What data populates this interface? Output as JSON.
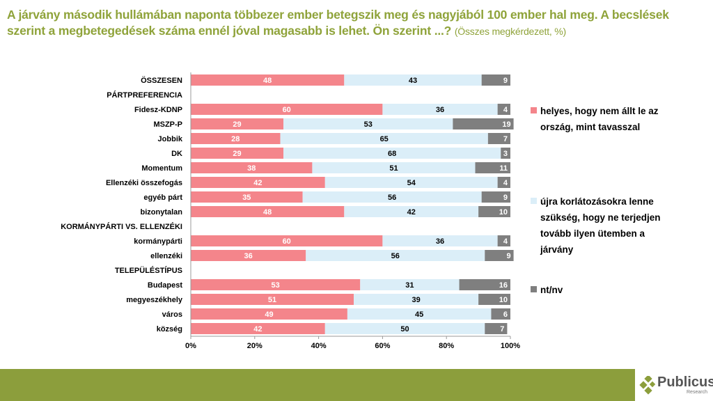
{
  "title": {
    "main": "A járvány második hullámában naponta többezer ember betegszik meg és nagyjából 100 ember hal meg. A becslések szerint a megbetegedések száma ennél jóval magasabb is lehet. Ön szerint ...?",
    "sub": "(Összes megkérdezett, %)"
  },
  "colors": {
    "s1": "#f4858b",
    "s2": "#dbeef8",
    "s3": "#7f7f7f",
    "title": "#8fa33a"
  },
  "chart_data": {
    "type": "bar",
    "stacked": true,
    "orientation": "horizontal",
    "xlim": [
      0,
      100
    ],
    "xticks": [
      "0%",
      "20%",
      "40%",
      "60%",
      "80%",
      "100%"
    ],
    "categories": [
      "ÖSSZESEN",
      "PÁRTPREFERENCIA",
      "Fidesz-KDNP",
      "MSZP-P",
      "Jobbik",
      "DK",
      "Momentum",
      "Ellenzéki összefogás",
      "egyéb párt",
      "bizonytalan",
      "KORMÁNYPÁRTI VS. ELLENZÉKI",
      "kormánypárti",
      "ellenzéki",
      "TELEPÜLÉSTÍPUS",
      "Budapest",
      "megyeszékhely",
      "város",
      "község"
    ],
    "series": [
      {
        "name": "helyes, hogy nem állt le az ország, mint tavasszal",
        "values": [
          48,
          null,
          60,
          29,
          28,
          29,
          38,
          42,
          35,
          48,
          null,
          60,
          36,
          null,
          53,
          51,
          49,
          42
        ]
      },
      {
        "name": "újra korlátozásokra lenne szükség, hogy ne terjedjen tovább ilyen ütemben a járvány",
        "values": [
          43,
          null,
          36,
          53,
          65,
          68,
          51,
          54,
          56,
          42,
          null,
          36,
          56,
          null,
          31,
          39,
          45,
          50
        ]
      },
      {
        "name": "nt/nv",
        "values": [
          9,
          null,
          4,
          19,
          7,
          3,
          11,
          4,
          9,
          10,
          null,
          4,
          9,
          null,
          16,
          10,
          6,
          7
        ]
      }
    ],
    "legend": "right"
  },
  "logo": {
    "name": "Publicus",
    "sub": "Research"
  }
}
